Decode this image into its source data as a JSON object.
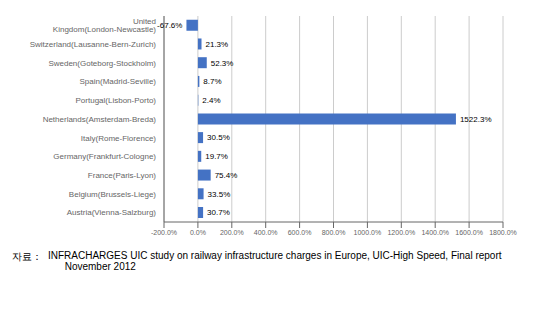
{
  "chart_data": {
    "type": "bar",
    "orientation": "horizontal",
    "categories": [
      "United Kingdom(London-Newcastle)",
      "Switzerland(Lausanne-Bern-Zurich)",
      "Sweden(Goteborg-Stockholm)",
      "Spain(Madrid-Seville)",
      "Portugal(Lisbon-Porto)",
      "Netherlands(Amsterdam-Breda)",
      "Italy(Rome-Florence)",
      "Germany(Frankfurt-Cologne)",
      "France(Paris-Lyon)",
      "Belgium(Brussels-Liege)",
      "Austria(Vienna-Salzburg)"
    ],
    "values": [
      -67.6,
      21.3,
      52.3,
      8.7,
      2.4,
      1522.3,
      30.5,
      19.7,
      75.4,
      33.5,
      30.7
    ],
    "value_labels": [
      "-67.6%",
      "21.3%",
      "52.3%",
      "8.7%",
      "2.4%",
      "1522.3%",
      "30.5%",
      "19.7%",
      "75.4%",
      "33.5%",
      "30.7%"
    ],
    "data_labels": true,
    "color": "#4472c4",
    "xlim": [
      -200,
      1800
    ],
    "xticks": [
      {
        "value": -200,
        "label": "-200.0%"
      },
      {
        "value": 0,
        "label": "0.0%"
      },
      {
        "value": 200,
        "label": "200.0%"
      },
      {
        "value": 400,
        "label": "400.0%"
      },
      {
        "value": 600,
        "label": "600.0%"
      },
      {
        "value": 800,
        "label": "800.0%"
      },
      {
        "value": 1000,
        "label": "1000.0%"
      },
      {
        "value": 1200,
        "label": "1200.0%"
      },
      {
        "value": 1400,
        "label": "1400.0%"
      },
      {
        "value": 1600,
        "label": "1600.0%"
      },
      {
        "value": 1800,
        "label": "1800.0%"
      }
    ],
    "grid": true,
    "annotations": [
      "자료：",
      "INFRACHARGES UIC study on railway infrastructure charges in Europe, UIC-High Speed, Final report\n      November 2012"
    ]
  }
}
